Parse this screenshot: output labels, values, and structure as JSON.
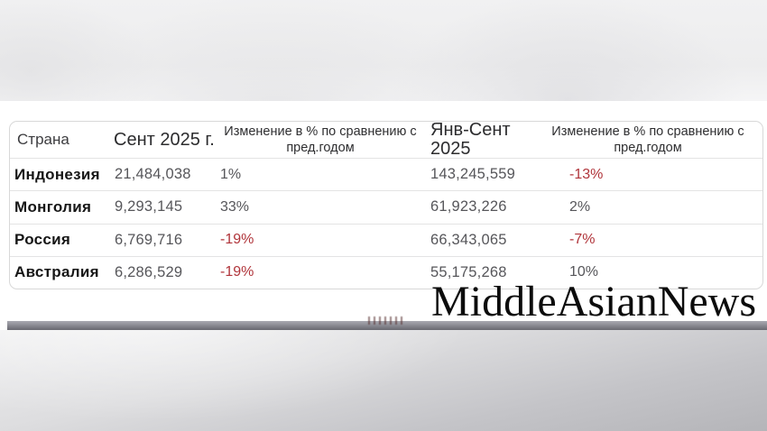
{
  "watermark": "MiddleAsianNews",
  "chart_data": {
    "type": "table",
    "columns": [
      "Страна",
      "Сент 2025 г.",
      "Изменение в % по сравнению с пред.годом",
      "Янв-Сент 2025",
      "Изменение в % по сравнению с пред.годом"
    ],
    "rows": [
      [
        "Индонезия",
        "21,484,038",
        "1%",
        "143,245,559",
        "-13%"
      ],
      [
        "Монголия",
        "9,293,145",
        "33%",
        "61,923,226",
        "2%"
      ],
      [
        "Россия",
        "6,769,716",
        "-19%",
        "66,343,065",
        "-7%"
      ],
      [
        "Австралия",
        "6,286,529",
        "-19%",
        "55,175,268",
        "10%"
      ]
    ],
    "legend": null,
    "grid": "horizontal-row-separators"
  },
  "colors": {
    "negative_value": "#b0343a",
    "neutral_value": "#56565a",
    "country_text": "#161616",
    "table_border": "#d8d8d8",
    "divider_bar": "#8d8d95"
  }
}
